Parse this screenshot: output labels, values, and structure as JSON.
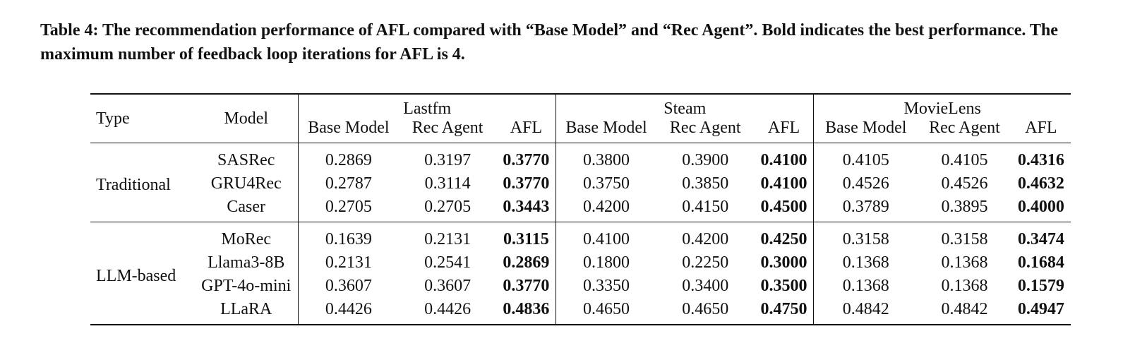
{
  "caption": "Table 4: The recommendation performance of AFL compared with “Base Model” and “Rec Agent”. Bold indicates the best performance. The maximum number of feedback loop iterations for AFL is 4.",
  "header": {
    "type": "Type",
    "model": "Model",
    "datasets": [
      "Lastfm",
      "Steam",
      "MovieLens"
    ],
    "sub": [
      "Base Model",
      "Rec Agent",
      "AFL"
    ]
  },
  "groups": [
    {
      "type": "Traditional",
      "rows": [
        {
          "model": "SASRec",
          "values": [
            "0.2869",
            "0.3197",
            "0.3770",
            "0.3800",
            "0.3900",
            "0.4100",
            "0.4105",
            "0.4105",
            "0.4316"
          ]
        },
        {
          "model": "GRU4Rec",
          "values": [
            "0.2787",
            "0.3114",
            "0.3770",
            "0.3750",
            "0.3850",
            "0.4100",
            "0.4526",
            "0.4526",
            "0.4632"
          ]
        },
        {
          "model": "Caser",
          "values": [
            "0.2705",
            "0.2705",
            "0.3443",
            "0.4200",
            "0.4150",
            "0.4500",
            "0.3789",
            "0.3895",
            "0.4000"
          ]
        }
      ]
    },
    {
      "type": "LLM-based",
      "rows": [
        {
          "model": "MoRec",
          "values": [
            "0.1639",
            "0.2131",
            "0.3115",
            "0.4100",
            "0.4200",
            "0.4250",
            "0.3158",
            "0.3158",
            "0.3474"
          ]
        },
        {
          "model": "Llama3-8B",
          "values": [
            "0.2131",
            "0.2541",
            "0.2869",
            "0.1800",
            "0.2250",
            "0.3000",
            "0.1368",
            "0.1368",
            "0.1684"
          ]
        },
        {
          "model": "GPT-4o-mini",
          "values": [
            "0.3607",
            "0.3607",
            "0.3770",
            "0.3350",
            "0.3400",
            "0.3500",
            "0.1368",
            "0.1368",
            "0.1579"
          ]
        },
        {
          "model": "LLaRA",
          "values": [
            "0.4426",
            "0.4426",
            "0.4836",
            "0.4650",
            "0.4650",
            "0.4750",
            "0.4842",
            "0.4842",
            "0.4947"
          ]
        }
      ]
    }
  ]
}
